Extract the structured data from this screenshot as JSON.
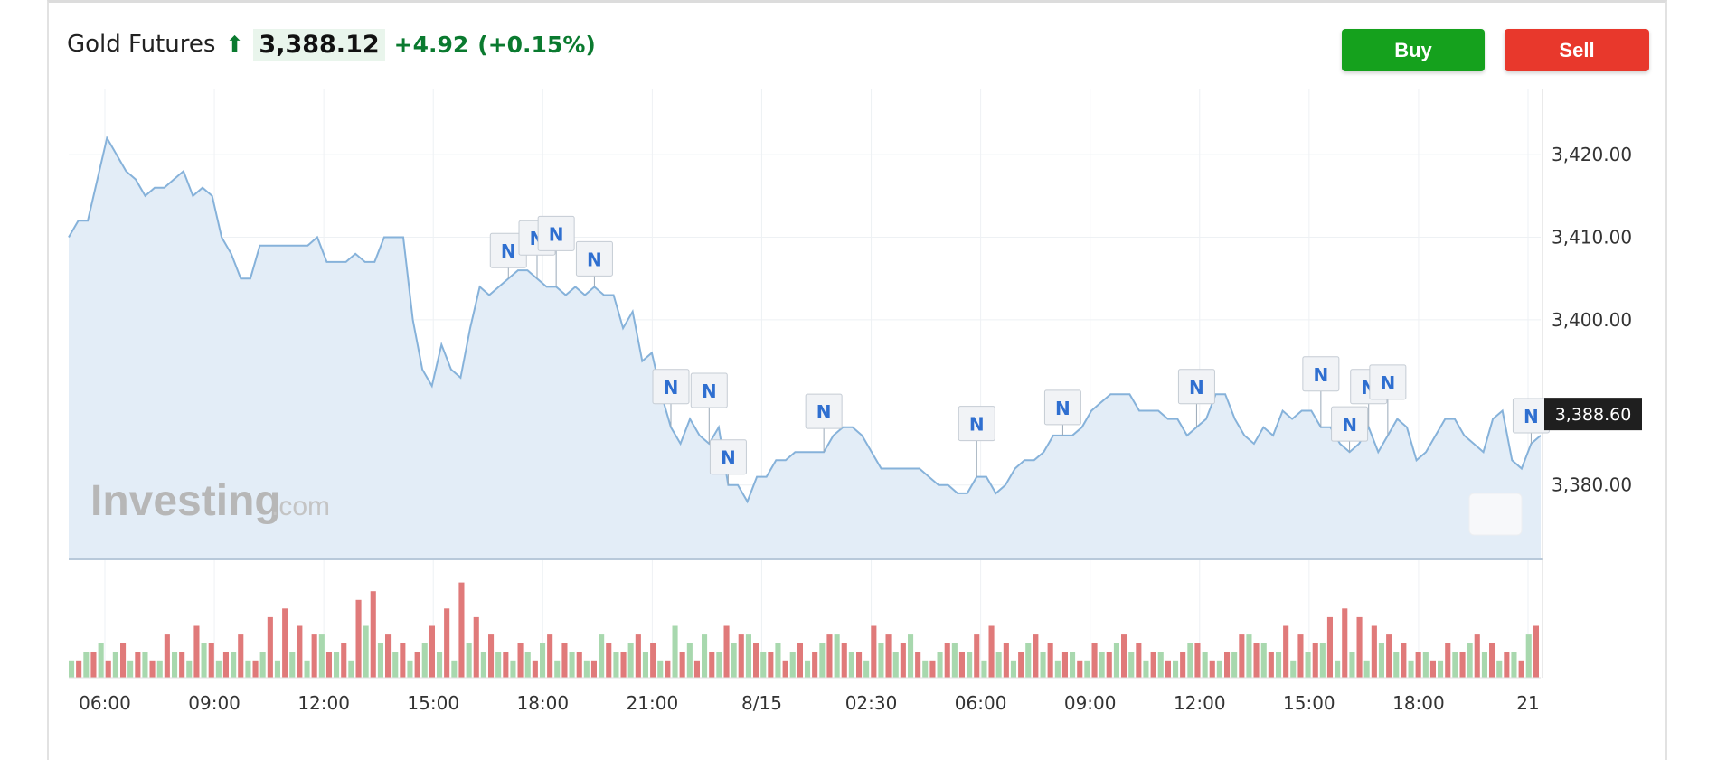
{
  "header": {
    "name": "Gold Futures",
    "price": "3,388.12",
    "change": "+4.92",
    "change_pct": "(+0.15%)"
  },
  "buttons": {
    "buy": "Buy",
    "sell": "Sell"
  },
  "watermark": {
    "main": "Investing",
    "suffix": ".com"
  },
  "colors": {
    "line": "#86b2da",
    "area": "#e3edf7",
    "up": "#a8d8ae",
    "down": "#e07a7a",
    "buy": "#15a11d",
    "sell": "#e8382c",
    "price_change": "#0a7a2f"
  },
  "chart_data": {
    "type": "area",
    "x_ticks": [
      "06:00",
      "09:00",
      "12:00",
      "15:00",
      "18:00",
      "21:00",
      "8/15",
      "02:30",
      "06:00",
      "09:00",
      "12:00",
      "15:00",
      "18:00",
      "21"
    ],
    "y_ticks": [
      "3,420.00",
      "3,410.00",
      "3,400.00",
      "3,380.00"
    ],
    "ylim": [
      3371,
      3428
    ],
    "last_price_label": "3,388.60",
    "price": [
      3410,
      3412,
      3412,
      3417,
      3422,
      3420,
      3418,
      3417,
      3415,
      3416,
      3416,
      3417,
      3418,
      3415,
      3416,
      3415,
      3410,
      3408,
      3405,
      3405,
      3409,
      3409,
      3409,
      3409,
      3409,
      3409,
      3410,
      3407,
      3407,
      3407,
      3408,
      3407,
      3407,
      3410,
      3410,
      3410,
      3400,
      3394,
      3392,
      3397,
      3394,
      3393,
      3399,
      3404,
      3403,
      3404,
      3405,
      3406,
      3406,
      3405,
      3404,
      3404,
      3403,
      3404,
      3403,
      3404,
      3403,
      3403,
      3399,
      3401,
      3395,
      3396,
      3391,
      3387,
      3385,
      3388,
      3386,
      3385,
      3387,
      3380,
      3380,
      3378,
      3381,
      3381,
      3383,
      3383,
      3384,
      3384,
      3384,
      3384,
      3386,
      3387,
      3387,
      3386,
      3384,
      3382,
      3382,
      3382,
      3382,
      3382,
      3381,
      3380,
      3380,
      3379,
      3379,
      3381,
      3381,
      3379,
      3380,
      3382,
      3383,
      3383,
      3384,
      3386,
      3386,
      3386,
      3387,
      3389,
      3390,
      3391,
      3391,
      3391,
      3389,
      3389,
      3389,
      3388,
      3388,
      3386,
      3387,
      3388,
      3391,
      3391,
      3388,
      3386,
      3385,
      3387,
      3386,
      3389,
      3388,
      3389,
      3389,
      3387,
      3387,
      3385,
      3384,
      3385,
      3387,
      3384,
      3386,
      3388,
      3387,
      3383,
      3384,
      3386,
      3388,
      3388,
      3386,
      3385,
      3384,
      3388,
      3389,
      3383,
      3382,
      3385,
      3386
    ],
    "volume_up": [
      2,
      3,
      4,
      3,
      2,
      3,
      2,
      3,
      2,
      4,
      2,
      3,
      2,
      3,
      2,
      3,
      2,
      5,
      3,
      2,
      6,
      4,
      3,
      2,
      4,
      3,
      2,
      4,
      3,
      3,
      2,
      3,
      4,
      2,
      3,
      2,
      5,
      3,
      4,
      3,
      2,
      6,
      4,
      5,
      3,
      4,
      5,
      3,
      4,
      3,
      2,
      4,
      5,
      3,
      2,
      4,
      3,
      5,
      2,
      3,
      4,
      3,
      2,
      3,
      2,
      4,
      3,
      2,
      3,
      2,
      3,
      4,
      3,
      2,
      3,
      2,
      4,
      3,
      2,
      3,
      5,
      4,
      3,
      2,
      3,
      4,
      2,
      3,
      2,
      4,
      3,
      2,
      3,
      2,
      3,
      4,
      3,
      2,
      3,
      5
    ],
    "volume_down": [
      2,
      3,
      2,
      4,
      3,
      2,
      5,
      3,
      6,
      4,
      3,
      5,
      2,
      7,
      8,
      6,
      5,
      3,
      4,
      9,
      10,
      5,
      4,
      3,
      6,
      8,
      11,
      7,
      5,
      3,
      4,
      2,
      5,
      4,
      3,
      2,
      4,
      3,
      5,
      4,
      2,
      3,
      2,
      3,
      6,
      5,
      4,
      3,
      2,
      4,
      3,
      5,
      4,
      3,
      6,
      5,
      4,
      3,
      2,
      4,
      3,
      5,
      6,
      4,
      3,
      5,
      4,
      3,
      2,
      4,
      3,
      5,
      4,
      3,
      2,
      3,
      4,
      2,
      3,
      5,
      4,
      3,
      6,
      5,
      4,
      7,
      8,
      7,
      6,
      5,
      4,
      3,
      2,
      4,
      3,
      5,
      4,
      3,
      2,
      6
    ],
    "news_markers": [
      {
        "label": "N",
        "at": 46
      },
      {
        "label": "N",
        "at": 49
      },
      {
        "label": "N",
        "at": 51
      },
      {
        "label": "N",
        "at": 55
      },
      {
        "label": "N",
        "at": 63
      },
      {
        "label": "N",
        "at": 67
      },
      {
        "label": "N",
        "at": 69
      },
      {
        "label": "N",
        "at": 79
      },
      {
        "label": "N",
        "at": 95
      },
      {
        "label": "N",
        "at": 104
      },
      {
        "label": "N",
        "at": 118
      },
      {
        "label": "N",
        "at": 131
      },
      {
        "label": "N",
        "at": 134
      },
      {
        "label": "N",
        "at": 136
      },
      {
        "label": "N",
        "at": 138
      },
      {
        "label": "N",
        "at": 153
      }
    ]
  }
}
